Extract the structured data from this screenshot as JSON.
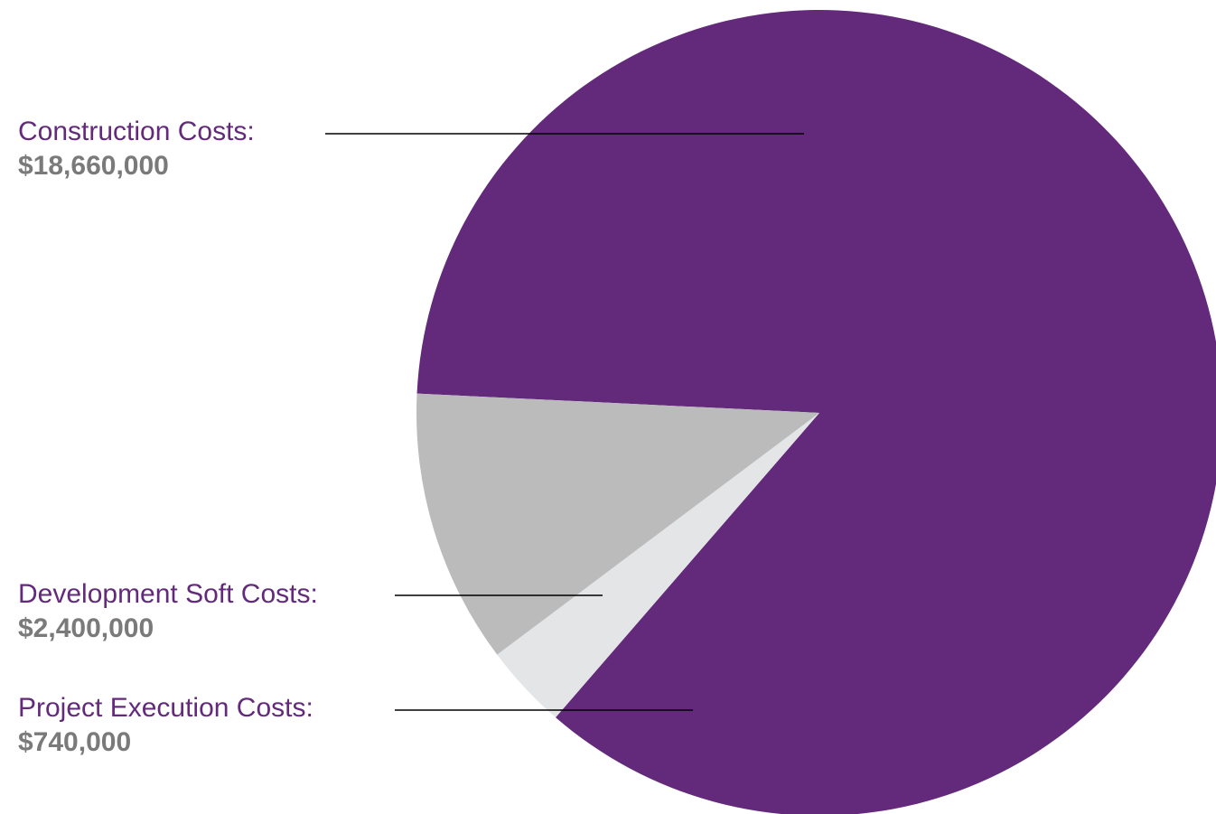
{
  "chart_data": {
    "type": "pie",
    "title": "",
    "slices": [
      {
        "label": "Construction Costs:",
        "value": 18660000,
        "value_text": "$18,660,000",
        "color": "#632a7c"
      },
      {
        "label": "Project Execution Costs:",
        "value": 740000,
        "value_text": "$740,000",
        "color": "#e4e5e6"
      },
      {
        "label": "Development Soft Costs:",
        "value": 2400000,
        "value_text": "$2,400,000",
        "color": "#bbbbbb"
      }
    ],
    "legend": "none",
    "leader_line_color": "#000000"
  }
}
